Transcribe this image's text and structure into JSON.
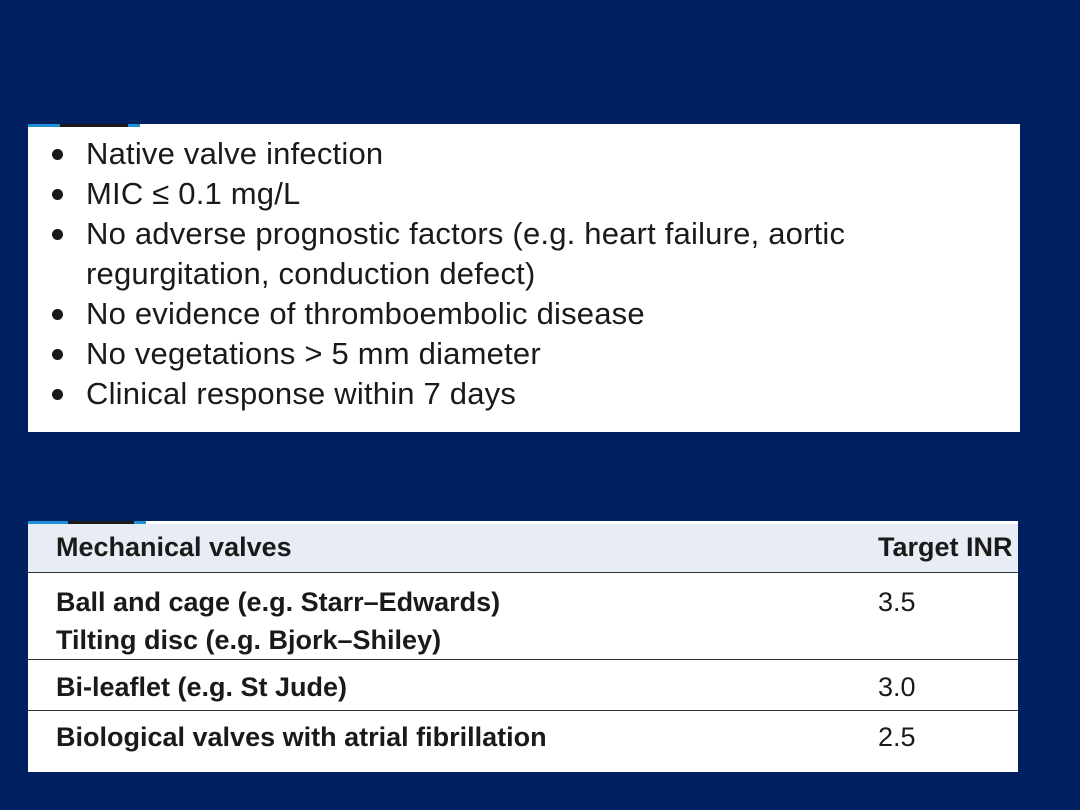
{
  "criteria": {
    "items": [
      "Native valve infection",
      "MIC ≤ 0.1 mg/L",
      "No adverse prognostic factors (e.g. heart failure, aortic regurgitation, conduction defect)",
      "No evidence of thromboembolic disease",
      "No vegetations > 5 mm diameter",
      "Clinical response within 7 days"
    ]
  },
  "inr_table": {
    "headers": [
      "Mechanical valves",
      "Target INR"
    ],
    "rows": [
      {
        "valve_lines": [
          "Ball and cage (e.g. Starr–Edwards)",
          "Tilting disc (e.g. Bjork–Shiley)"
        ],
        "inr": "3.5"
      },
      {
        "valve_lines": [
          "Bi-leaflet (e.g. St Jude)"
        ],
        "inr": "3.0"
      },
      {
        "valve_lines": [
          "Biological valves with atrial fibrillation"
        ],
        "inr": "2.5"
      }
    ]
  },
  "colors": {
    "background": "#002060",
    "header_row": "#e8ecf5",
    "accent": "#1f8fd6"
  }
}
